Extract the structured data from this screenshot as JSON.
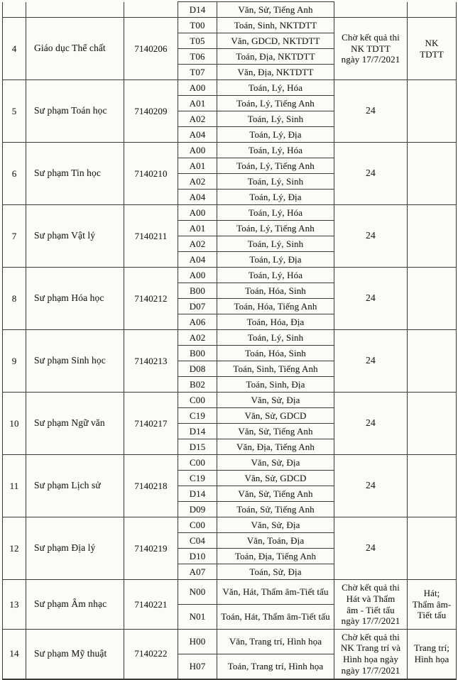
{
  "document": {
    "kind": "admission-subject-combination-table",
    "colors": {
      "page_background": "#fbfbf8",
      "border": "#3a3a3a",
      "text": "#222222"
    },
    "partial_row": {
      "no": "",
      "major": "",
      "code": "",
      "combo_code": "D14",
      "subjects": "Văn, Sử, Tiếng Anh",
      "score": "",
      "note": ""
    },
    "rows": [
      {
        "no": "4",
        "major": "Giáo dục Thể chất",
        "code": "7140206",
        "combos": [
          {
            "code": "T00",
            "subjects": "Toán, Sinh, NKTDTT"
          },
          {
            "code": "T05",
            "subjects": "Văn, GDCD, NKTDTT"
          },
          {
            "code": "T06",
            "subjects": "Toán, Địa, NKTDTT"
          },
          {
            "code": "T07",
            "subjects": "Văn, Địa, NKTDTT"
          }
        ],
        "score": "Chờ kết quả thi\nNK TDTT\nngày 17/7/2021",
        "note": "NK\nTDTT"
      },
      {
        "no": "5",
        "major": "Sư phạm Toán học",
        "code": "7140209",
        "combos": [
          {
            "code": "A00",
            "subjects": "Toán, Lý, Hóa"
          },
          {
            "code": "A01",
            "subjects": "Toán, Lý, Tiếng Anh"
          },
          {
            "code": "A02",
            "subjects": "Toán, Lý, Sinh"
          },
          {
            "code": "A04",
            "subjects": "Toán, Lý, Địa"
          }
        ],
        "score": "24",
        "note": ""
      },
      {
        "no": "6",
        "major": "Sư phạm Tin học",
        "code": "7140210",
        "combos": [
          {
            "code": "A00",
            "subjects": "Toán, Lý, Hóa"
          },
          {
            "code": "A01",
            "subjects": "Toán, Lý, Tiếng Anh"
          },
          {
            "code": "A02",
            "subjects": "Toán, Lý, Sinh"
          },
          {
            "code": "A04",
            "subjects": "Toán, Lý, Địa"
          }
        ],
        "score": "24",
        "note": ""
      },
      {
        "no": "7",
        "major": "Sư phạm Vật lý",
        "code": "7140211",
        "combos": [
          {
            "code": "A00",
            "subjects": "Toán, Lý, Hóa"
          },
          {
            "code": "A01",
            "subjects": "Toán, Lý, Tiếng Anh"
          },
          {
            "code": "A02",
            "subjects": "Toán, Lý, Sinh"
          },
          {
            "code": "A04",
            "subjects": "Toán, Lý, Địa"
          }
        ],
        "score": "24",
        "note": ""
      },
      {
        "no": "8",
        "major": "Sư phạm Hóa học",
        "code": "7140212",
        "combos": [
          {
            "code": "A00",
            "subjects": "Toán, Lý, Hóa"
          },
          {
            "code": "B00",
            "subjects": "Toán, Hóa, Sinh"
          },
          {
            "code": "D07",
            "subjects": "Toán, Hóa, Tiếng Anh"
          },
          {
            "code": "A06",
            "subjects": "Toán, Hóa, Địa"
          }
        ],
        "score": "24",
        "note": ""
      },
      {
        "no": "9",
        "major": "Sư phạm Sinh học",
        "code": "7140213",
        "combos": [
          {
            "code": "A02",
            "subjects": "Toán, Lý, Sinh"
          },
          {
            "code": "B00",
            "subjects": "Toán, Hóa, Sinh"
          },
          {
            "code": "D08",
            "subjects": "Toán, Sinh, Tiếng Anh"
          },
          {
            "code": "B02",
            "subjects": "Toán, Sinh, Địa"
          }
        ],
        "score": "24",
        "note": ""
      },
      {
        "no": "10",
        "major": "Sư phạm Ngữ văn",
        "code": "7140217",
        "combos": [
          {
            "code": "C00",
            "subjects": "Văn, Sử, Địa"
          },
          {
            "code": "C19",
            "subjects": "Văn, Sử, GDCD"
          },
          {
            "code": "D14",
            "subjects": "Văn, Sử, Tiếng Anh"
          },
          {
            "code": "D15",
            "subjects": "Văn, Địa, Tiếng Anh"
          }
        ],
        "score": "24",
        "note": ""
      },
      {
        "no": "11",
        "major": "Sư phạm Lịch sử",
        "code": "7140218",
        "combos": [
          {
            "code": "C00",
            "subjects": "Văn, Sử, Địa"
          },
          {
            "code": "C19",
            "subjects": "Văn, Sử, GDCD"
          },
          {
            "code": "D14",
            "subjects": "Văn, Sử, Tiếng Anh"
          },
          {
            "code": "D09",
            "subjects": "Toán, Sử, Tiếng Anh"
          }
        ],
        "score": "24",
        "note": ""
      },
      {
        "no": "12",
        "major": "Sư phạm Địa lý",
        "code": "7140219",
        "combos": [
          {
            "code": "C00",
            "subjects": "Văn, Sử, Địa"
          },
          {
            "code": "C04",
            "subjects": "Văn, Toán, Địa"
          },
          {
            "code": "D10",
            "subjects": "Toán, Địa, Tiếng Anh"
          },
          {
            "code": "A07",
            "subjects": "Toán, Sử, Địa"
          }
        ],
        "score": "24",
        "note": ""
      },
      {
        "no": "13",
        "major": "Sư phạm Âm nhạc",
        "code": "7140221",
        "combos": [
          {
            "code": "N00",
            "subjects": "Văn, Hát, Thẩm âm-Tiết tấu"
          },
          {
            "code": "N01",
            "subjects": "Toán, Hát, Thẩm âm-Tiết tấu"
          }
        ],
        "score": "Chờ kết quả thi\nHát và Thẩm\nâm - Tiết tấu\nngày 17/7/2021",
        "note": "Hát;\nThẩm âm-\nTiết tấu"
      },
      {
        "no": "14",
        "major": "Sư phạm Mỹ thuật",
        "code": "7140222",
        "combos": [
          {
            "code": "H00",
            "subjects": "Văn, Trang trí, Hình họa"
          },
          {
            "code": "H07",
            "subjects": "Toán, Trang trí, Hình họa"
          }
        ],
        "score": "Chờ kết quả thi\nNK Trang trí và\nHình họa ngày\nngày 17/7/2021",
        "note": "Trang trí;\nHình họa"
      }
    ]
  }
}
